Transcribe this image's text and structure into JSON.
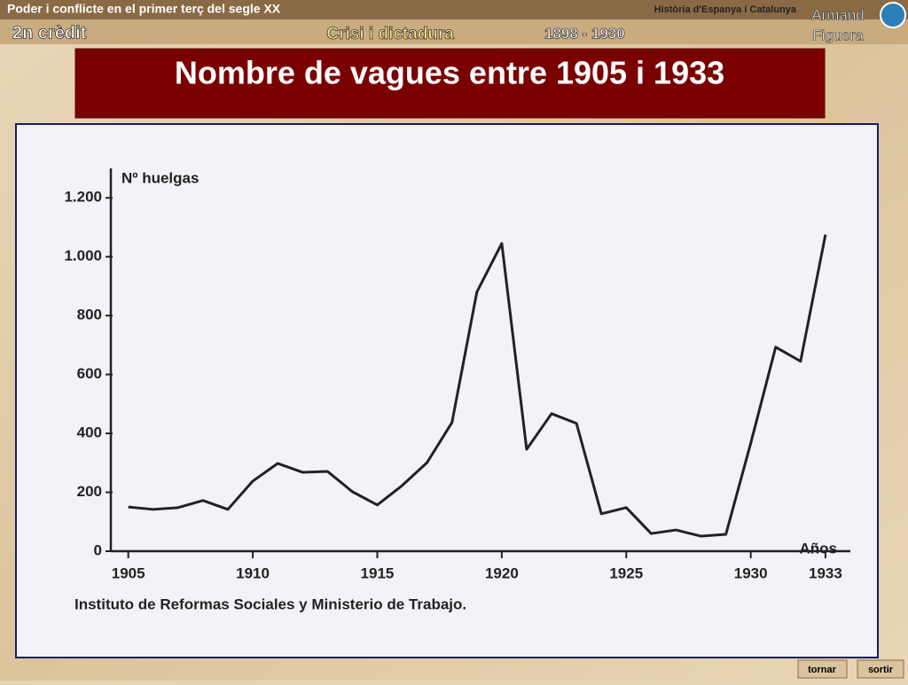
{
  "header": {
    "course": "Poder i conflicte en el primer terç del segle XX",
    "subject": "Història d'Espanya i Catalunya",
    "author": [
      "Armand",
      "Figuera"
    ],
    "credit": "2n crèdit",
    "unit": "Crisi i dictadura",
    "period": "1898 - 1930"
  },
  "nav": {
    "back": "tornar",
    "exit": "sortir"
  },
  "chart_data": {
    "type": "line",
    "title": "Nombre de vagues entre 1905 i 1933",
    "y_label": "Nº huelgas",
    "x_label": "Años",
    "source": "Instituto de Reformas Sociales y Ministerio de Trabajo.",
    "x": [
      1905,
      1906,
      1907,
      1908,
      1909,
      1910,
      1911,
      1912,
      1913,
      1914,
      1915,
      1916,
      1917,
      1918,
      1919,
      1920,
      1921,
      1922,
      1923,
      1924,
      1925,
      1926,
      1927,
      1928,
      1929,
      1930,
      1931,
      1932,
      1933
    ],
    "series": [
      {
        "name": "Nº huelgas",
        "color": "#222222",
        "values": [
          150,
          142,
          148,
          172,
          142,
          238,
          298,
          268,
          271,
          202,
          157,
          223,
          301,
          437,
          880,
          1045,
          346,
          467,
          434,
          127,
          148,
          60,
          72,
          51,
          57,
          367,
          693,
          645,
          1075
        ]
      }
    ],
    "xlim": [
      1904.3,
      1934
    ],
    "xticks": [
      1905,
      1910,
      1915,
      1920,
      1925,
      1930,
      1933
    ],
    "ylim": [
      0,
      1300
    ],
    "yticks": [
      0,
      200,
      400,
      600,
      800,
      {
        "value": 1000,
        "label": "1.000"
      },
      {
        "value": 1200,
        "label": "1.200"
      }
    ],
    "grid": false
  }
}
